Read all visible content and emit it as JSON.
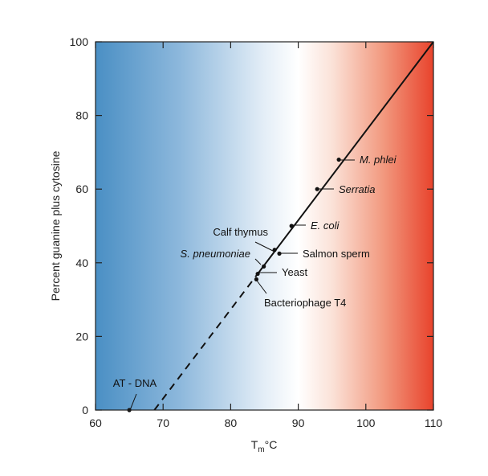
{
  "chart_data": {
    "type": "line",
    "title": "",
    "xlabel": "Tm°C",
    "xlabel_main": "T",
    "xlabel_sub": "m",
    "xlabel_unit": "°C",
    "ylabel": "Percent guanine plus cytosine",
    "xlim": [
      60,
      110
    ],
    "ylim": [
      0,
      100
    ],
    "x_ticks": [
      60,
      70,
      80,
      90,
      100,
      110
    ],
    "y_ticks": [
      0,
      20,
      40,
      60,
      80,
      100
    ],
    "grid": false,
    "background": "horizontal gradient blue (low Tm) to white to red (high Tm)",
    "colors": {
      "cold": "#4a8fc4",
      "neutral": "#ffffff",
      "hot": "#e8432c",
      "line": "#111111"
    },
    "series": [
      {
        "style": "solid",
        "x": [
          84.0,
          110.0
        ],
        "y": [
          37.0,
          100.0
        ]
      },
      {
        "style": "dashed",
        "x": [
          68.7,
          84.0
        ],
        "y": [
          0.0,
          37.0
        ]
      }
    ],
    "points": [
      {
        "label": "M. phlei",
        "italic": true,
        "x": 96.0,
        "y": 68.0
      },
      {
        "label": "Serratia",
        "italic": true,
        "x": 92.8,
        "y": 60.0
      },
      {
        "label": "E. coli",
        "italic": true,
        "x": 89.0,
        "y": 50.0
      },
      {
        "label": "Calf thymus",
        "italic": false,
        "x": 86.5,
        "y": 43.5
      },
      {
        "label": "Salmon sperm",
        "italic": false,
        "x": 87.2,
        "y": 42.5
      },
      {
        "label": "S. pneumoniae",
        "italic": true,
        "x": 84.9,
        "y": 39.0
      },
      {
        "label": "Yeast",
        "italic": false,
        "x": 84.0,
        "y": 37.0
      },
      {
        "label": "Bacteriophage T4",
        "italic": false,
        "x": 83.8,
        "y": 35.5
      },
      {
        "label": "AT - DNA",
        "italic": false,
        "x": 65.0,
        "y": 0.0
      }
    ]
  }
}
